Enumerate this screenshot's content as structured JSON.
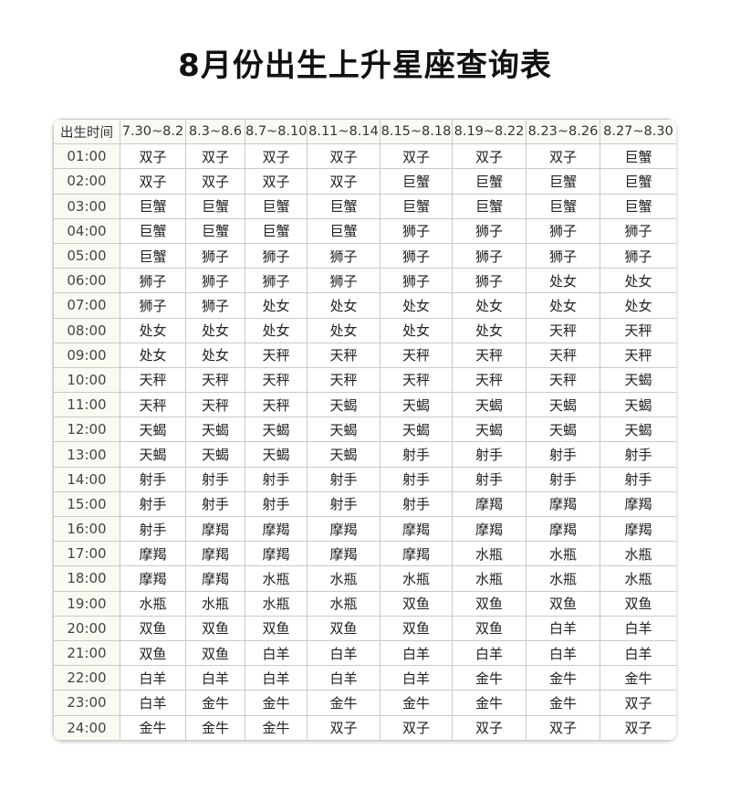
{
  "title": "8月份出生上升星座查询表",
  "table": {
    "headers": [
      "出生时间",
      "7.30~8.2",
      "8.3~8.6",
      "8.7~8.10",
      "8.11~8.14",
      "8.15~8.18",
      "8.19~8.22",
      "8.23~8.26",
      "8.27~8.30"
    ],
    "rows": [
      {
        "time": "01:00",
        "cells": [
          "双子",
          "双子",
          "双子",
          "双子",
          "双子",
          "双子",
          "双子",
          "巨蟹"
        ]
      },
      {
        "time": "02:00",
        "cells": [
          "双子",
          "双子",
          "双子",
          "双子",
          "巨蟹",
          "巨蟹",
          "巨蟹",
          "巨蟹"
        ]
      },
      {
        "time": "03:00",
        "cells": [
          "巨蟹",
          "巨蟹",
          "巨蟹",
          "巨蟹",
          "巨蟹",
          "巨蟹",
          "巨蟹",
          "巨蟹"
        ]
      },
      {
        "time": "04:00",
        "cells": [
          "巨蟹",
          "巨蟹",
          "巨蟹",
          "巨蟹",
          "狮子",
          "狮子",
          "狮子",
          "狮子"
        ]
      },
      {
        "time": "05:00",
        "cells": [
          "巨蟹",
          "狮子",
          "狮子",
          "狮子",
          "狮子",
          "狮子",
          "狮子",
          "狮子"
        ]
      },
      {
        "time": "06:00",
        "cells": [
          "狮子",
          "狮子",
          "狮子",
          "狮子",
          "狮子",
          "狮子",
          "处女",
          "处女"
        ]
      },
      {
        "time": "07:00",
        "cells": [
          "狮子",
          "狮子",
          "处女",
          "处女",
          "处女",
          "处女",
          "处女",
          "处女"
        ]
      },
      {
        "time": "08:00",
        "cells": [
          "处女",
          "处女",
          "处女",
          "处女",
          "处女",
          "处女",
          "天秤",
          "天秤"
        ]
      },
      {
        "time": "09:00",
        "cells": [
          "处女",
          "处女",
          "天秤",
          "天秤",
          "天秤",
          "天秤",
          "天秤",
          "天秤"
        ]
      },
      {
        "time": "10:00",
        "cells": [
          "天秤",
          "天秤",
          "天秤",
          "天秤",
          "天秤",
          "天秤",
          "天秤",
          "天蝎"
        ]
      },
      {
        "time": "11:00",
        "cells": [
          "天秤",
          "天秤",
          "天秤",
          "天蝎",
          "天蝎",
          "天蝎",
          "天蝎",
          "天蝎"
        ]
      },
      {
        "time": "12:00",
        "cells": [
          "天蝎",
          "天蝎",
          "天蝎",
          "天蝎",
          "天蝎",
          "天蝎",
          "天蝎",
          "天蝎"
        ]
      },
      {
        "time": "13:00",
        "cells": [
          "天蝎",
          "天蝎",
          "天蝎",
          "天蝎",
          "射手",
          "射手",
          "射手",
          "射手"
        ]
      },
      {
        "time": "14:00",
        "cells": [
          "射手",
          "射手",
          "射手",
          "射手",
          "射手",
          "射手",
          "射手",
          "射手"
        ]
      },
      {
        "time": "15:00",
        "cells": [
          "射手",
          "射手",
          "射手",
          "射手",
          "射手",
          "摩羯",
          "摩羯",
          "摩羯"
        ]
      },
      {
        "time": "16:00",
        "cells": [
          "射手",
          "摩羯",
          "摩羯",
          "摩羯",
          "摩羯",
          "摩羯",
          "摩羯",
          "摩羯"
        ]
      },
      {
        "time": "17:00",
        "cells": [
          "摩羯",
          "摩羯",
          "摩羯",
          "摩羯",
          "摩羯",
          "水瓶",
          "水瓶",
          "水瓶"
        ]
      },
      {
        "time": "18:00",
        "cells": [
          "摩羯",
          "摩羯",
          "水瓶",
          "水瓶",
          "水瓶",
          "水瓶",
          "水瓶",
          "水瓶"
        ]
      },
      {
        "time": "19:00",
        "cells": [
          "水瓶",
          "水瓶",
          "水瓶",
          "水瓶",
          "双鱼",
          "双鱼",
          "双鱼",
          "双鱼"
        ]
      },
      {
        "time": "20:00",
        "cells": [
          "双鱼",
          "双鱼",
          "双鱼",
          "双鱼",
          "双鱼",
          "双鱼",
          "白羊",
          "白羊"
        ]
      },
      {
        "time": "21:00",
        "cells": [
          "双鱼",
          "双鱼",
          "白羊",
          "白羊",
          "白羊",
          "白羊",
          "白羊",
          "白羊"
        ]
      },
      {
        "time": "22:00",
        "cells": [
          "白羊",
          "白羊",
          "白羊",
          "白羊",
          "白羊",
          "金牛",
          "金牛",
          "金牛"
        ]
      },
      {
        "time": "23:00",
        "cells": [
          "白羊",
          "金牛",
          "金牛",
          "金牛",
          "金牛",
          "金牛",
          "金牛",
          "双子"
        ]
      },
      {
        "time": "24:00",
        "cells": [
          "金牛",
          "金牛",
          "金牛",
          "双子",
          "双子",
          "双子",
          "双子",
          "双子"
        ]
      }
    ]
  }
}
